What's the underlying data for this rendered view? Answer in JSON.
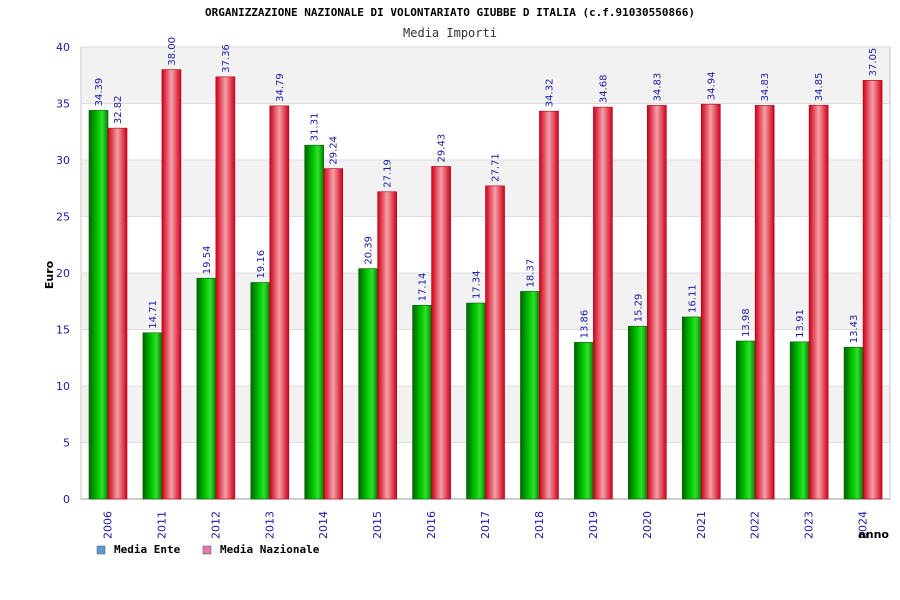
{
  "chart_data": {
    "type": "bar",
    "title": "ORGANIZZAZIONE NAZIONALE DI VOLONTARIATO GIUBBE D ITALIA (c.f.91030550866)",
    "subtitle": "Media Importi",
    "xlabel": "anno",
    "ylabel": "Euro",
    "ylim": [
      0,
      40
    ],
    "yticks": [
      "0",
      "5",
      "10",
      "15",
      "20",
      "25",
      "30",
      "35",
      "40"
    ],
    "grid": true,
    "legend_position": "bottom-left",
    "categories": [
      "2006",
      "2011",
      "2012",
      "2013",
      "2014",
      "2015",
      "2016",
      "2017",
      "2018",
      "2019",
      "2020",
      "2021",
      "2022",
      "2023",
      "2024"
    ],
    "series": [
      {
        "name": "Media Ente",
        "color": "#00a000",
        "legend_color": "#5b9bd5",
        "values": [
          34.39,
          14.71,
          19.54,
          19.16,
          31.31,
          20.39,
          17.14,
          17.34,
          18.37,
          13.86,
          15.29,
          16.11,
          13.98,
          13.91,
          13.43
        ],
        "labels": [
          "34.39",
          "14.71",
          "19.54",
          "19.16",
          "31.31",
          "20.39",
          "17.14",
          "17.34",
          "18.37",
          "13.86",
          "15.29",
          "16.11",
          "13.98",
          "13.91",
          "13.43"
        ]
      },
      {
        "name": "Media Nazionale",
        "color": "#e8001a",
        "legend_color": "#e07ab0",
        "values": [
          32.82,
          38.0,
          37.36,
          34.79,
          29.24,
          27.19,
          29.43,
          27.71,
          34.32,
          34.68,
          34.83,
          34.94,
          34.83,
          34.85,
          37.05
        ],
        "labels": [
          "32.82",
          "38.00",
          "37.36",
          "34.79",
          "29.24",
          "27.19",
          "29.43",
          "27.71",
          "34.32",
          "34.68",
          "34.83",
          "34.94",
          "34.83",
          "34.85",
          "37.05"
        ]
      }
    ]
  }
}
